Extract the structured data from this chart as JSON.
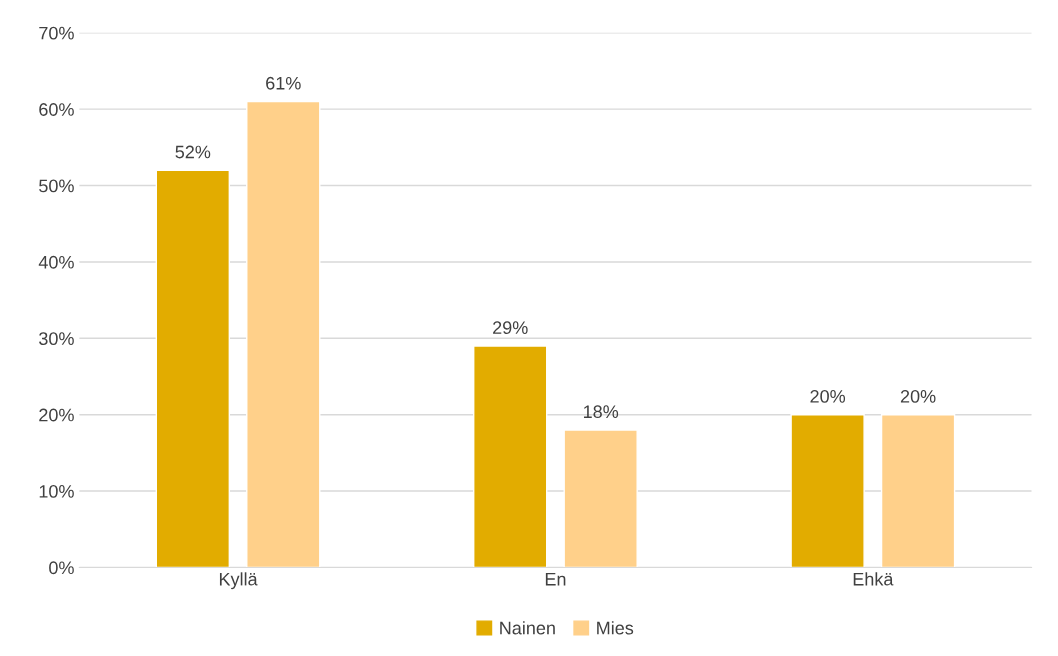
{
  "chart_data": {
    "type": "bar",
    "categories": [
      "Kyllä",
      "En",
      "Ehkä"
    ],
    "series": [
      {
        "name": "Nainen",
        "color": "#e2ac00",
        "values": [
          52,
          29,
          20
        ]
      },
      {
        "name": "Mies",
        "color": "#ffd08a",
        "values": [
          61,
          18,
          20
        ]
      }
    ],
    "value_labels": [
      [
        "52%",
        "29%",
        "20%"
      ],
      [
        "61%",
        "18%",
        "20%"
      ]
    ],
    "ylim": [
      0,
      70
    ],
    "yticks": [
      {
        "value": 0,
        "label": "0%"
      },
      {
        "value": 10,
        "label": "10%"
      },
      {
        "value": 20,
        "label": "20%"
      },
      {
        "value": 30,
        "label": "30%"
      },
      {
        "value": 40,
        "label": "40%"
      },
      {
        "value": 50,
        "label": "50%"
      },
      {
        "value": 60,
        "label": "60%"
      },
      {
        "value": 70,
        "label": "70%"
      }
    ],
    "grid": "y",
    "legend": "bottom"
  }
}
